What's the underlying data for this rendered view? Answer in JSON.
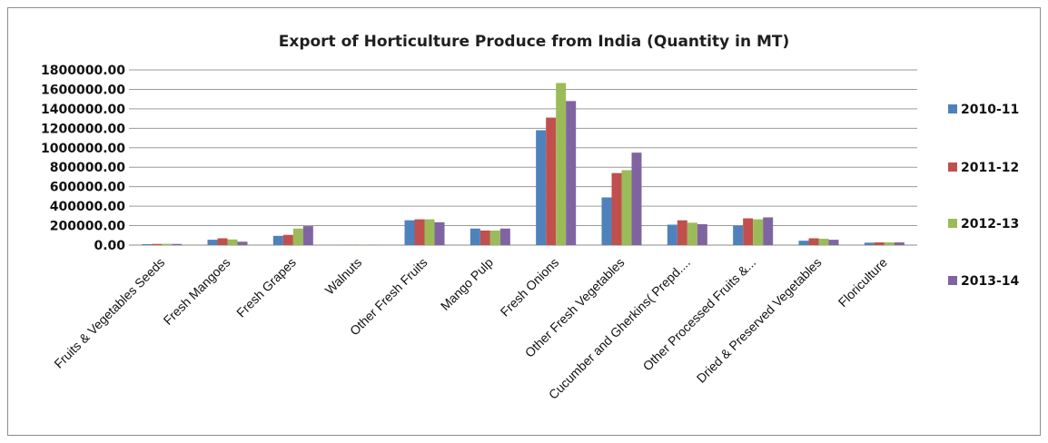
{
  "chart_data": {
    "type": "bar",
    "title": "Export of Horticulture Produce from India (Quantity in MT)",
    "categories": [
      "Fruits & Vegetables Seeds",
      "Fresh Mangoes",
      "Fresh Grapes",
      "Walnuts",
      "Other Fresh Fruits",
      "Mango Pulp",
      "Fresh Onions",
      "Other Fresh Vegetables",
      "Cucumber and Gherkins( Prepd....",
      "Other Processed Fruits &...",
      "Dried & Preserved Vegetables",
      "Floriculture"
    ],
    "series": [
      {
        "name": "2010-11",
        "color": "#4f81bd",
        "values": [
          10000,
          55000,
          95000,
          2000,
          255000,
          170000,
          1180000,
          490000,
          210000,
          200000,
          45000,
          25000
        ]
      },
      {
        "name": "2011-12",
        "color": "#c0504d",
        "values": [
          12000,
          70000,
          105000,
          2000,
          265000,
          150000,
          1310000,
          740000,
          255000,
          275000,
          70000,
          28000
        ]
      },
      {
        "name": "2012-13",
        "color": "#9bbb59",
        "values": [
          13000,
          58000,
          170000,
          2000,
          265000,
          150000,
          1665000,
          770000,
          230000,
          265000,
          65000,
          28000
        ]
      },
      {
        "name": "2013-14",
        "color": "#8064a2",
        "values": [
          12000,
          35000,
          195000,
          2000,
          235000,
          170000,
          1480000,
          950000,
          215000,
          285000,
          55000,
          28000
        ]
      }
    ],
    "yticks": [
      "0.00",
      "200000.00",
      "400000.00",
      "600000.00",
      "800000.00",
      "1000000.00",
      "1200000.00",
      "1400000.00",
      "1600000.00",
      "1800000.00"
    ],
    "ylim": [
      0,
      1800000
    ],
    "grid": true,
    "legend": "right"
  }
}
